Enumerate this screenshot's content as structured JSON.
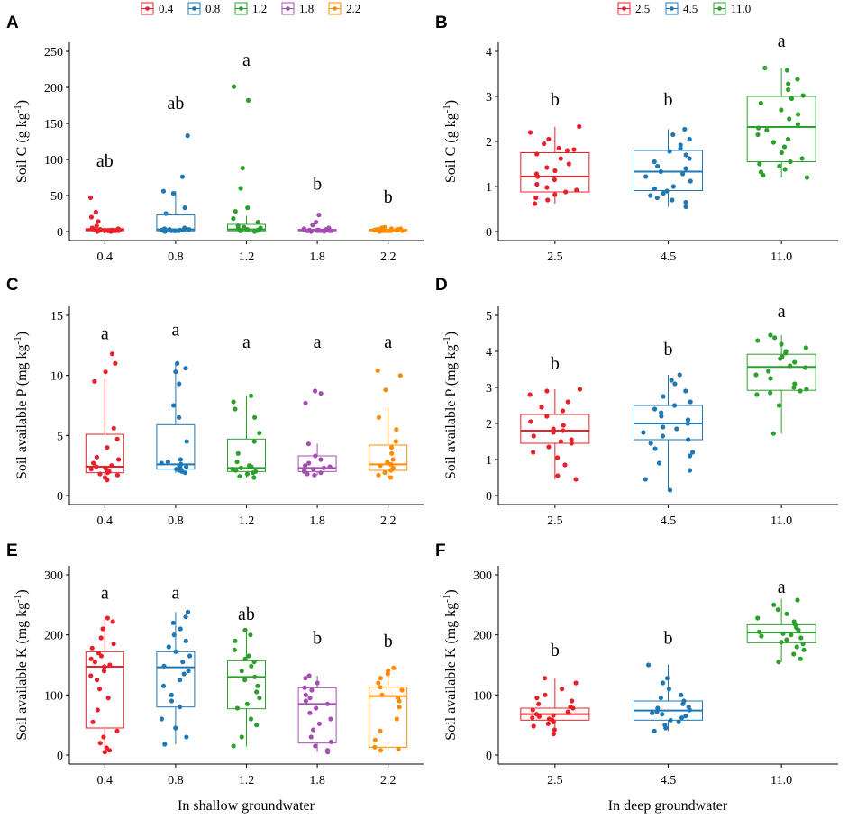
{
  "figure": {
    "legend_shallow": [
      "0.4",
      "0.8",
      "1.2",
      "1.8",
      "2.2"
    ],
    "legend_deep": [
      "2.5",
      "4.5",
      "11.0"
    ],
    "xlabel_shallow": "In shallow groundwater",
    "xlabel_deep": "In deep groundwater"
  },
  "chart_data": [
    {
      "panel": "A",
      "type": "box",
      "group": "shallow",
      "ylabel": "Soil C (g kg-1)",
      "ylim": [
        0,
        250
      ],
      "yticks": [
        0,
        50,
        100,
        150,
        200,
        250
      ],
      "categories": [
        "0.4",
        "0.8",
        "1.2",
        "1.8",
        "2.2"
      ],
      "colors": [
        "#E8202A",
        "#1F78B4",
        "#2CA02C",
        "#A24FB0",
        "#FF8C00"
      ],
      "boxes": [
        {
          "q1": 1,
          "median": 2.5,
          "q3": 4,
          "whisker_low": 0,
          "whisker_high": 7
        },
        {
          "q1": 1,
          "median": 3,
          "q3": 23,
          "whisker_low": 0,
          "whisker_high": 56
        },
        {
          "q1": 1,
          "median": 3,
          "q3": 10,
          "whisker_low": 0,
          "whisker_high": 22
        },
        {
          "q1": 1,
          "median": 2,
          "q3": 3,
          "whisker_low": 0,
          "whisker_high": 5
        },
        {
          "q1": 1,
          "median": 2,
          "q3": 3,
          "whisker_low": 0,
          "whisker_high": 4
        }
      ],
      "points": [
        [
          47,
          27,
          20,
          14,
          8,
          5,
          4,
          3,
          3,
          2,
          2,
          2,
          1,
          1,
          1,
          1,
          1,
          1,
          1,
          1,
          0,
          0
        ],
        [
          133,
          76,
          56,
          53,
          33,
          25,
          5,
          4,
          3,
          3,
          2,
          2,
          2,
          2,
          1,
          1,
          1,
          1,
          1,
          1,
          0
        ],
        [
          201,
          182,
          88,
          60,
          33,
          28,
          18,
          13,
          8,
          6,
          5,
          4,
          3,
          3,
          2,
          2,
          2,
          1,
          1,
          1,
          1,
          0
        ],
        [
          23,
          13,
          9,
          5,
          4,
          3,
          3,
          2,
          2,
          2,
          2,
          1,
          1,
          1,
          1,
          1,
          1,
          1,
          0,
          0
        ],
        [
          6,
          5,
          4,
          4,
          3,
          3,
          3,
          2,
          2,
          2,
          2,
          2,
          1,
          1,
          1,
          1,
          1,
          1,
          1,
          0
        ]
      ],
      "letters": [
        "ab",
        "ab",
        "a",
        "b",
        "b"
      ],
      "letter_values": [
        90,
        170,
        230,
        58,
        40
      ]
    },
    {
      "panel": "B",
      "type": "box",
      "group": "deep",
      "ylabel": "Soil C (g kg-1)",
      "ylim": [
        0,
        4
      ],
      "yticks": [
        0,
        1,
        2,
        3,
        4
      ],
      "categories": [
        "2.5",
        "4.5",
        "11.0"
      ],
      "colors": [
        "#E8202A",
        "#1F78B4",
        "#2CA02C"
      ],
      "boxes": [
        {
          "q1": 0.88,
          "median": 1.22,
          "q3": 1.75,
          "whisker_low": 0.62,
          "whisker_high": 2.32
        },
        {
          "q1": 0.91,
          "median": 1.33,
          "q3": 1.8,
          "whisker_low": 0.55,
          "whisker_high": 2.27
        },
        {
          "q1": 1.55,
          "median": 2.32,
          "q3": 3.0,
          "whisker_low": 1.2,
          "whisker_high": 3.63
        }
      ],
      "points": [
        [
          2.33,
          2.2,
          2.05,
          1.95,
          1.85,
          1.82,
          1.8,
          1.72,
          1.62,
          1.5,
          1.42,
          1.35,
          1.28,
          1.22,
          1.15,
          1.05,
          0.98,
          0.92,
          0.88,
          0.82,
          0.75,
          0.7,
          0.62
        ],
        [
          2.27,
          2.15,
          2.05,
          1.92,
          1.85,
          1.78,
          1.7,
          1.62,
          1.55,
          1.45,
          1.4,
          1.33,
          1.28,
          1.22,
          1.12,
          1.0,
          0.95,
          0.9,
          0.85,
          0.8,
          0.75,
          0.7,
          0.65,
          0.55
        ],
        [
          3.63,
          3.58,
          3.38,
          3.28,
          3.15,
          3.02,
          2.95,
          2.85,
          2.7,
          2.6,
          2.5,
          2.38,
          2.3,
          2.25,
          2.15,
          2.05,
          1.98,
          1.88,
          1.75,
          1.62,
          1.55,
          1.5,
          1.45,
          1.38,
          1.32,
          1.25,
          1.2
        ]
      ],
      "letters": [
        "b",
        "b",
        "a"
      ],
      "letter_values": [
        2.8,
        2.8,
        4.1
      ]
    },
    {
      "panel": "C",
      "type": "box",
      "group": "shallow",
      "ylabel": "Soil available P (mg kg-1)",
      "ylim": [
        0,
        15
      ],
      "yticks": [
        0,
        5,
        10,
        15
      ],
      "categories": [
        "0.4",
        "0.8",
        "1.2",
        "1.8",
        "2.2"
      ],
      "colors": [
        "#E8202A",
        "#1F78B4",
        "#2CA02C",
        "#A24FB0",
        "#FF8C00"
      ],
      "boxes": [
        {
          "q1": 1.9,
          "median": 2.4,
          "q3": 5.1,
          "whisker_low": 1.3,
          "whisker_high": 9.7
        },
        {
          "q1": 2.2,
          "median": 2.6,
          "q3": 5.9,
          "whisker_low": 1.9,
          "whisker_high": 11.0
        },
        {
          "q1": 2.0,
          "median": 2.3,
          "q3": 4.7,
          "whisker_low": 1.5,
          "whisker_high": 8.3
        },
        {
          "q1": 2.0,
          "median": 2.3,
          "q3": 3.3,
          "whisker_low": 1.7,
          "whisker_high": 4.3
        },
        {
          "q1": 2.1,
          "median": 2.6,
          "q3": 4.2,
          "whisker_low": 1.5,
          "whisker_high": 7.3
        }
      ],
      "points": [
        [
          11.8,
          11.0,
          10.3,
          9.5,
          5.6,
          4.7,
          4.0,
          3.2,
          3.0,
          2.7,
          2.5,
          2.4,
          2.3,
          2.2,
          2.1,
          2.0,
          1.9,
          1.8,
          1.7,
          1.5,
          1.3
        ],
        [
          11.0,
          10.6,
          10.3,
          9.3,
          7.5,
          6.5,
          4.5,
          3.0,
          2.8,
          2.7,
          2.6,
          2.5,
          2.4,
          2.3,
          2.2,
          2.1,
          2.0,
          1.9
        ],
        [
          8.3,
          7.8,
          7.2,
          6.5,
          5.2,
          4.5,
          3.5,
          2.8,
          2.5,
          2.4,
          2.3,
          2.2,
          2.1,
          2.0,
          1.9,
          1.8,
          1.6,
          1.5
        ],
        [
          8.7,
          8.5,
          7.7,
          4.3,
          3.3,
          3.0,
          2.7,
          2.5,
          2.4,
          2.3,
          2.2,
          2.1,
          2.0,
          1.9,
          1.8,
          1.7
        ],
        [
          10.4,
          10.0,
          8.8,
          6.5,
          5.5,
          4.5,
          4.0,
          3.5,
          3.0,
          2.8,
          2.6,
          2.5,
          2.3,
          2.2,
          2.1,
          1.9,
          1.7,
          1.5
        ]
      ],
      "letters": [
        "a",
        "a",
        "a",
        "a",
        "a"
      ],
      "letter_values": [
        13.0,
        13.3,
        12.3,
        12.3,
        12.3
      ]
    },
    {
      "panel": "D",
      "type": "box",
      "group": "deep",
      "ylabel": "Soil available P (mg kg-1)",
      "ylim": [
        0,
        5
      ],
      "yticks": [
        0,
        1,
        2,
        3,
        4,
        5
      ],
      "categories": [
        "2.5",
        "4.5",
        "11.0"
      ],
      "colors": [
        "#E8202A",
        "#1F78B4",
        "#2CA02C"
      ],
      "boxes": [
        {
          "q1": 1.45,
          "median": 1.8,
          "q3": 2.25,
          "whisker_low": 0.45,
          "whisker_high": 2.95
        },
        {
          "q1": 1.55,
          "median": 2.0,
          "q3": 2.5,
          "whisker_low": 0.15,
          "whisker_high": 3.35
        },
        {
          "q1": 2.92,
          "median": 3.57,
          "q3": 3.92,
          "whisker_low": 1.72,
          "whisker_high": 4.45
        }
      ],
      "points": [
        [
          2.95,
          2.9,
          2.8,
          2.6,
          2.45,
          2.35,
          2.2,
          2.05,
          1.95,
          1.85,
          1.8,
          1.75,
          1.65,
          1.55,
          1.5,
          1.45,
          1.35,
          1.2,
          1.05,
          0.85,
          0.55,
          0.45
        ],
        [
          3.35,
          3.2,
          3.1,
          2.9,
          2.75,
          2.6,
          2.5,
          2.4,
          2.3,
          2.2,
          2.1,
          2.0,
          1.9,
          1.85,
          1.75,
          1.65,
          1.55,
          1.45,
          1.3,
          1.2,
          1.1,
          0.9,
          0.7,
          0.45,
          0.15
        ],
        [
          4.45,
          4.38,
          4.3,
          4.2,
          4.1,
          4.0,
          3.95,
          3.85,
          3.8,
          3.7,
          3.6,
          3.55,
          3.45,
          3.35,
          3.25,
          3.1,
          3.0,
          2.95,
          2.9,
          2.85,
          2.8,
          2.5,
          1.72
        ]
      ],
      "letters": [
        "b",
        "b",
        "a"
      ],
      "letter_values": [
        3.5,
        3.9,
        4.95
      ]
    },
    {
      "panel": "E",
      "type": "box",
      "group": "shallow",
      "ylabel": "Soil available K (mg kg-1)",
      "ylim": [
        0,
        300
      ],
      "yticks": [
        0,
        100,
        200,
        300
      ],
      "categories": [
        "0.4",
        "0.8",
        "1.2",
        "1.8",
        "2.2"
      ],
      "colors": [
        "#E8202A",
        "#1F78B4",
        "#2CA02C",
        "#A24FB0",
        "#FF8C00"
      ],
      "boxes": [
        {
          "q1": 45,
          "median": 147,
          "q3": 172,
          "whisker_low": 5,
          "whisker_high": 230
        },
        {
          "q1": 80,
          "median": 146,
          "q3": 172,
          "whisker_low": 18,
          "whisker_high": 238
        },
        {
          "q1": 77,
          "median": 130,
          "q3": 157,
          "whisker_low": 14,
          "whisker_high": 208
        },
        {
          "q1": 20,
          "median": 85,
          "q3": 112,
          "whisker_low": 5,
          "whisker_high": 132
        },
        {
          "q1": 13,
          "median": 98,
          "q3": 113,
          "whisker_low": 8,
          "whisker_high": 145
        }
      ],
      "points": [
        [
          228,
          222,
          210,
          195,
          185,
          178,
          170,
          165,
          160,
          155,
          150,
          147,
          140,
          132,
          125,
          110,
          95,
          75,
          55,
          40,
          30,
          20,
          12,
          8,
          5
        ],
        [
          238,
          230,
          220,
          210,
          200,
          190,
          180,
          172,
          165,
          155,
          148,
          140,
          135,
          125,
          115,
          100,
          90,
          80,
          60,
          45,
          30,
          18
        ],
        [
          208,
          200,
          190,
          175,
          165,
          160,
          155,
          148,
          140,
          130,
          125,
          115,
          105,
          95,
          85,
          78,
          60,
          50,
          30,
          15
        ],
        [
          132,
          128,
          120,
          112,
          108,
          100,
          95,
          90,
          85,
          78,
          70,
          60,
          52,
          42,
          30,
          22,
          15,
          8,
          5
        ],
        [
          145,
          140,
          135,
          128,
          120,
          113,
          108,
          100,
          95,
          90,
          80,
          60,
          40,
          25,
          13,
          10,
          8
        ]
      ],
      "letters": [
        "a",
        "a",
        "ab",
        "b",
        "b"
      ],
      "letter_values": [
        260,
        260,
        225,
        185,
        180
      ]
    },
    {
      "panel": "F",
      "type": "box",
      "group": "deep",
      "ylabel": "Soil available K (mg kg-1)",
      "ylim": [
        0,
        300
      ],
      "yticks": [
        0,
        100,
        200,
        300
      ],
      "categories": [
        "2.5",
        "4.5",
        "11.0"
      ],
      "colors": [
        "#E8202A",
        "#1F78B4",
        "#2CA02C"
      ],
      "boxes": [
        {
          "q1": 58,
          "median": 68,
          "q3": 78,
          "whisker_low": 35,
          "whisker_high": 128
        },
        {
          "q1": 58,
          "median": 74,
          "q3": 90,
          "whisker_low": 40,
          "whisker_high": 150
        },
        {
          "q1": 187,
          "median": 204,
          "q3": 217,
          "whisker_low": 155,
          "whisker_high": 260
        }
      ],
      "points": [
        [
          128,
          120,
          110,
          100,
          95,
          90,
          85,
          80,
          78,
          75,
          72,
          70,
          68,
          66,
          64,
          62,
          60,
          58,
          55,
          52,
          48,
          42,
          35
        ],
        [
          150,
          128,
          120,
          110,
          100,
          95,
          90,
          85,
          80,
          78,
          75,
          72,
          70,
          68,
          65,
          62,
          58,
          55,
          50,
          45,
          40
        ],
        [
          258,
          250,
          242,
          235,
          228,
          222,
          218,
          215,
          212,
          208,
          205,
          202,
          200,
          198,
          195,
          192,
          188,
          185,
          180,
          175,
          168,
          160,
          155
        ]
      ],
      "letters": [
        "b",
        "b",
        "a"
      ],
      "letter_values": [
        165,
        185,
        270
      ]
    }
  ]
}
